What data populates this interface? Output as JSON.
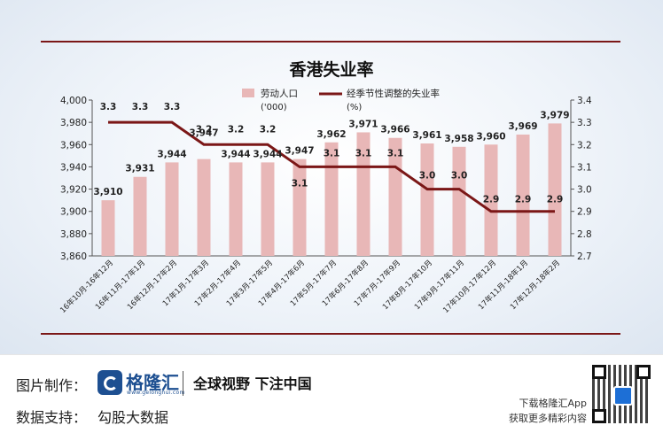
{
  "chart_data": {
    "type": "bar+line",
    "title": "香港失业率",
    "categories": [
      "16年10月-16年12月",
      "16年11月-17年1月",
      "16年12月-17年2月",
      "17年1月-17年3月",
      "17年2月-17年4月",
      "17年3月-17年5月",
      "17年4月-17年6月",
      "17年5月-17年7月",
      "17年6月-17年8月",
      "17年7月-17年9月",
      "17年8月-17年10月",
      "17年9月-17年11月",
      "17年10月-17年12月",
      "17年11月-18年1月",
      "17年12月-18年2月"
    ],
    "series": [
      {
        "name": "劳动人口 ('000)",
        "type": "bar",
        "axis": "left",
        "color": "#e8b7b7",
        "values": [
          3910,
          3931,
          3944,
          3947,
          3944,
          3944,
          3947,
          3962,
          3971,
          3966,
          3961,
          3958,
          3960,
          3969,
          3979
        ]
      },
      {
        "name": "经季节性调整的失业率 (%)",
        "type": "line",
        "axis": "right",
        "color": "#7b1717",
        "values": [
          3.3,
          3.3,
          3.3,
          3.2,
          3.2,
          3.2,
          3.1,
          3.1,
          3.1,
          3.1,
          3.0,
          3.0,
          2.9,
          2.9,
          2.9
        ]
      }
    ],
    "y_left": {
      "min": 3860,
      "max": 4000,
      "ticks": [
        "3,860",
        "3,880",
        "3,900",
        "3,920",
        "3,940",
        "3,960",
        "3,980",
        "4,000"
      ]
    },
    "y_right": {
      "min": 2.7,
      "max": 3.4,
      "ticks": [
        "2.7",
        "2.8",
        "2.9",
        "3.0",
        "3.1",
        "3.2",
        "3.3",
        "3.4"
      ]
    },
    "legend": [
      {
        "label_line1": "劳动人口",
        "label_line2": "('000)"
      },
      {
        "label_line1": "经季节性调整的失业率",
        "label_line2": "(%)"
      }
    ],
    "legend_position": "top",
    "grid": false
  },
  "footer": {
    "image_maker_label": "图片制作：",
    "logo_name": "格隆汇",
    "logo_url": "www.gelonghui.com",
    "slogan": "全球视野 下注中国",
    "data_support_label": "数据支持：",
    "data_support_value": "勾股大数据",
    "app_line1": "下载格隆汇App",
    "app_line2": "获取更多精彩内容"
  }
}
